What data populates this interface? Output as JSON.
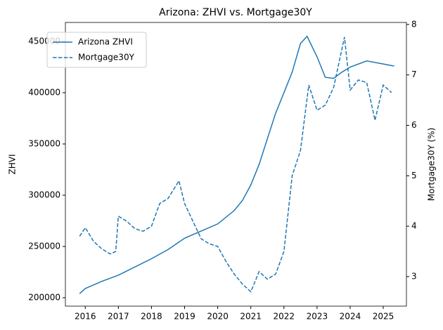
{
  "chart_data": {
    "type": "line",
    "title": "Arizona: ZHVI vs. Mortgage30Y",
    "ylabel": "ZHVI",
    "y2label": "Mortgage30Y (%)",
    "legend": "upper left",
    "grid": false,
    "xlim": [
      2015.4,
      2025.7
    ],
    "xticks": [
      2016,
      2017,
      2018,
      2019,
      2020,
      2021,
      2022,
      2023,
      2024,
      2025
    ],
    "ylim": [
      191800,
      468500
    ],
    "yticks": [
      200000,
      250000,
      300000,
      350000,
      400000,
      450000
    ],
    "y2lim": [
      2.415,
      8.04
    ],
    "y2ticks": [
      3,
      4,
      5,
      6,
      7,
      8
    ],
    "series": [
      {
        "name": "Arizona ZHVI",
        "color": "#1f77b4",
        "linestyle": "solid",
        "x": [
          2015.83,
          2016.0,
          2016.5,
          2017.0,
          2017.5,
          2018.0,
          2018.5,
          2019.0,
          2019.5,
          2020.0,
          2020.5,
          2020.75,
          2021.0,
          2021.25,
          2021.5,
          2021.75,
          2022.0,
          2022.25,
          2022.5,
          2022.7,
          2023.0,
          2023.25,
          2023.5,
          2023.75,
          2024.0,
          2024.5,
          2025.0,
          2025.33
        ],
        "values": [
          204000,
          209000,
          216000,
          222000,
          230000,
          238000,
          247000,
          258000,
          265000,
          272000,
          285000,
          295000,
          310000,
          330000,
          355000,
          380000,
          400000,
          420000,
          448000,
          455000,
          435000,
          415000,
          414000,
          420000,
          425000,
          431000,
          428000,
          426000
        ]
      },
      {
        "name": "Mortgage30Y",
        "color": "#1f77b4",
        "linestyle": "dashed",
        "axis": "y2",
        "x": [
          2015.83,
          2016.0,
          2016.25,
          2016.5,
          2016.75,
          2016.92,
          2017.0,
          2017.25,
          2017.5,
          2017.75,
          2018.0,
          2018.25,
          2018.5,
          2018.83,
          2019.0,
          2019.25,
          2019.5,
          2019.75,
          2020.0,
          2020.25,
          2020.5,
          2020.75,
          2021.0,
          2021.25,
          2021.5,
          2021.75,
          2022.0,
          2022.25,
          2022.5,
          2022.75,
          2023.0,
          2023.25,
          2023.5,
          2023.83,
          2024.0,
          2024.25,
          2024.5,
          2024.75,
          2025.0,
          2025.25
        ],
        "values": [
          3.8,
          3.97,
          3.7,
          3.55,
          3.45,
          3.5,
          4.2,
          4.1,
          3.95,
          3.9,
          4.0,
          4.45,
          4.55,
          4.9,
          4.45,
          4.1,
          3.75,
          3.65,
          3.6,
          3.3,
          3.05,
          2.85,
          2.7,
          3.1,
          2.95,
          3.05,
          3.5,
          5.0,
          5.5,
          6.8,
          6.3,
          6.4,
          6.75,
          7.75,
          6.7,
          6.9,
          6.85,
          6.1,
          6.8,
          6.65
        ]
      }
    ]
  }
}
